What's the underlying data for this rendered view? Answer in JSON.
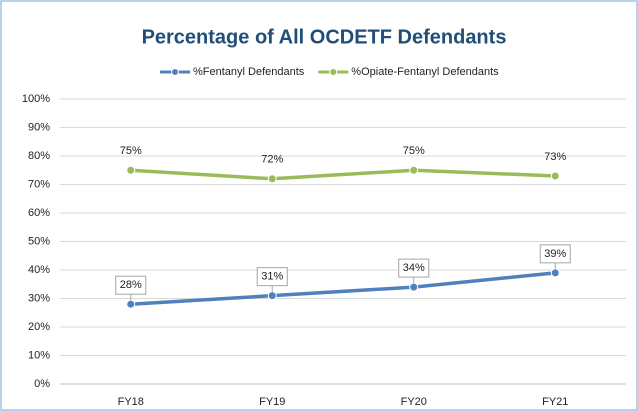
{
  "chart_data": {
    "type": "line",
    "title": "Percentage of All OCDETF Defendants",
    "categories": [
      "FY18",
      "FY19",
      "FY20",
      "FY21"
    ],
    "series": [
      {
        "name": "%Fentanyl Defendants",
        "color": "#4f81bd",
        "values": [
          28,
          31,
          34,
          39
        ],
        "value_labels": [
          "28%",
          "31%",
          "34%",
          "39%"
        ]
      },
      {
        "name": "%Opiate-Fentanyl Defendants",
        "color": "#9bbb59",
        "values": [
          75,
          72,
          75,
          73
        ],
        "value_labels": [
          "75%",
          "72%",
          "75%",
          "73%"
        ]
      }
    ],
    "ylim": [
      0,
      100
    ],
    "yticks": [
      {
        "value": 0,
        "label": "0%"
      },
      {
        "value": 10,
        "label": "10%"
      },
      {
        "value": 20,
        "label": "20%"
      },
      {
        "value": 30,
        "label": "30%"
      },
      {
        "value": 40,
        "label": "40%"
      },
      {
        "value": 50,
        "label": "50%"
      },
      {
        "value": 60,
        "label": "60%"
      },
      {
        "value": 70,
        "label": "70%"
      },
      {
        "value": 80,
        "label": "80%"
      },
      {
        "value": 90,
        "label": "90%"
      },
      {
        "value": 100,
        "label": "100%"
      }
    ],
    "grid": true,
    "legend": "top"
  }
}
